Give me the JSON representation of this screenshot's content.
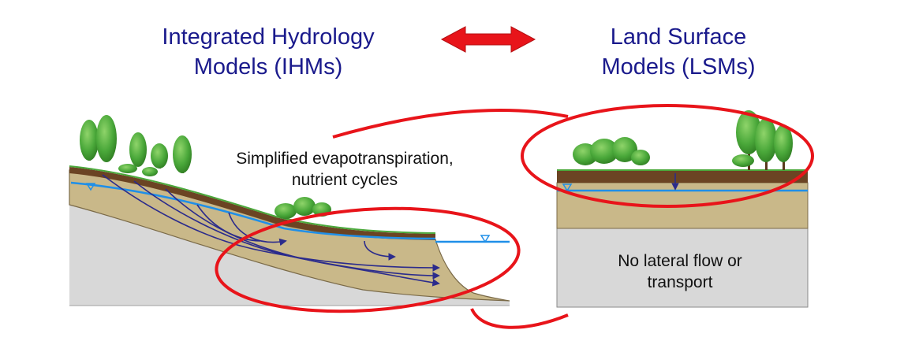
{
  "header": {
    "left_title_line1": "Integrated Hydrology",
    "left_title_line2": "Models (IHMs)",
    "right_title_line1": "Land Surface",
    "right_title_line2": "Models (LSMs)"
  },
  "annotations": {
    "ihm_note_line1": "Simplified evapotranspiration,",
    "ihm_note_line2": "nutrient cycles",
    "lsm_note_line1": "No lateral flow or",
    "lsm_note_line2": "transport"
  },
  "colors": {
    "title": "#1a1a8c",
    "arrow": "#e8141a",
    "highlight": "#e8141a",
    "water": "#1f8fe8",
    "flowlines": "#2b2b8c",
    "topsoil": "#6b4423",
    "subsoil": "#c9b889",
    "bedrock": "#d6d6d6",
    "tree": "#3f9f2e"
  },
  "icons": {
    "double_arrow": "double-headed-arrow-icon",
    "water_table": "water-table-triangle-icon"
  }
}
